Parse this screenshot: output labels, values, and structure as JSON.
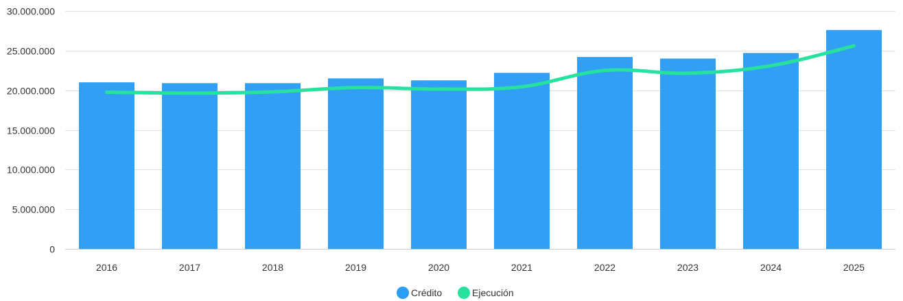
{
  "chart_data": {
    "type": "bar",
    "categories": [
      "2016",
      "2017",
      "2018",
      "2019",
      "2020",
      "2021",
      "2022",
      "2023",
      "2024",
      "2025"
    ],
    "series": [
      {
        "name": "Crédito",
        "type": "bar",
        "color": "#2a9df4",
        "values": [
          21000000,
          20900000,
          20900000,
          21500000,
          21250000,
          22200000,
          24200000,
          24000000,
          24700000,
          27600000
        ]
      },
      {
        "name": "Ejecución",
        "type": "line",
        "color": "#27e29e",
        "values": [
          19750000,
          19650000,
          19800000,
          20350000,
          20150000,
          20450000,
          22500000,
          22150000,
          23100000,
          25600000
        ]
      }
    ],
    "ylim": [
      0,
      30000000
    ],
    "yticks": [
      "0",
      "5.000.000",
      "10.000.000",
      "15.000.000",
      "20.000.000",
      "25.000.000",
      "30.000.000"
    ],
    "ytick_values": [
      0,
      5000000,
      10000000,
      15000000,
      20000000,
      25000000,
      30000000
    ],
    "grid": true,
    "legend_position": "bottom-center",
    "title": "",
    "xlabel": "",
    "ylabel": ""
  }
}
